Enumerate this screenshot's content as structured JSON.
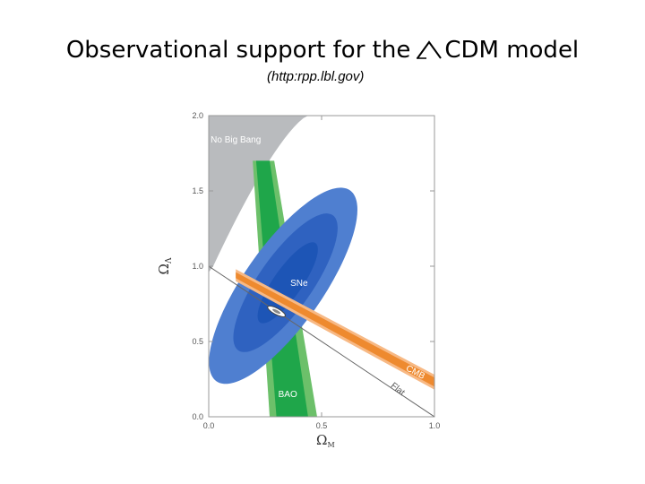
{
  "slide": {
    "title_pre": "Observational support for the",
    "title_post": "CDM model",
    "title_icon": "lambda-icon",
    "source": "(http:rpp.lbl.gov)"
  },
  "chart_data": {
    "type": "contour",
    "xlabel": "Ω",
    "xlabel_sub": "M",
    "ylabel": "Ω",
    "ylabel_sub": "Λ",
    "xlim": [
      0.0,
      1.0
    ],
    "ylim": [
      0.0,
      2.0
    ],
    "x_ticks": [
      "0.0",
      "0.5",
      "1.0"
    ],
    "y_ticks": [
      "0.0",
      "0.5",
      "1.0",
      "1.5",
      "2.0"
    ],
    "regions": [
      {
        "name": "No Big Bang",
        "color": "#b9bbbe"
      },
      {
        "name": "SNe",
        "color": "#4f7fd0",
        "center": [
          0.33,
          0.87
        ],
        "inner_color": "#2f62c0"
      },
      {
        "name": "BAO",
        "color": "#6cc06a",
        "inner_color": "#1fa64a"
      },
      {
        "name": "CMB",
        "color": "#f7b985",
        "inner_color": "#ee8a2f"
      },
      {
        "name": "Flat",
        "color": "#666666",
        "line": [
          [
            0.0,
            1.0
          ],
          [
            1.0,
            0.0
          ]
        ]
      }
    ],
    "best_fit": [
      0.3,
      0.7
    ]
  }
}
